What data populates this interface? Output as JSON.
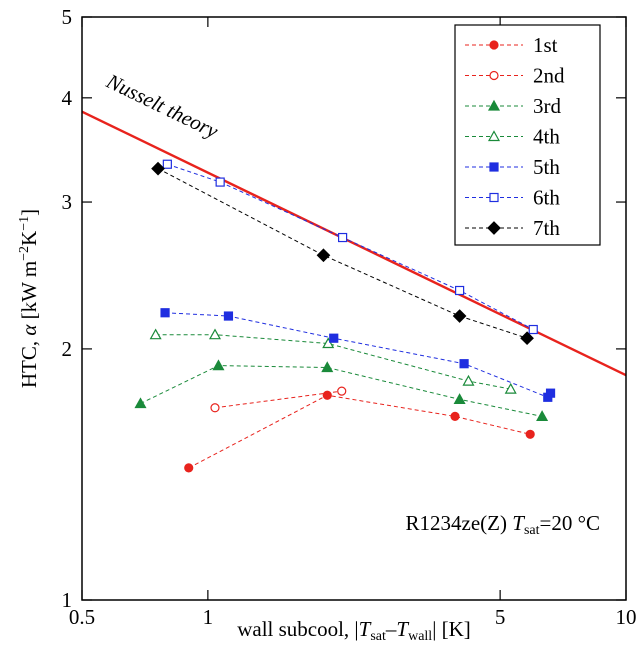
{
  "chart_data": {
    "type": "line",
    "xlabel": [
      "wall subcool,  |",
      "T",
      "sat",
      "–",
      "T",
      "wall",
      "| [K]"
    ],
    "ylabel": [
      "HTC,  ",
      "α",
      "   [kW m",
      "−2",
      "K",
      "−1",
      "]"
    ],
    "annotation": [
      "R1234ze(Z)   ",
      "T",
      "sat",
      "=20 °C"
    ],
    "xscale": "log",
    "yscale": "log",
    "xlim": [
      0.5,
      10
    ],
    "ylim": [
      1,
      5
    ],
    "xticks": [
      0.5,
      1,
      5,
      10
    ],
    "yticks": [
      1,
      2,
      3,
      4,
      5
    ],
    "legend": "upper right",
    "theory": {
      "name": "Nusselt theory",
      "color": "#e8231d",
      "x": [
        0.5,
        10
      ],
      "values": [
        3.85,
        1.86
      ]
    },
    "series": [
      {
        "name": "1st",
        "color": "#e8231d",
        "marker": "circle",
        "filled": true,
        "x": [
          0.9,
          1.93,
          3.9,
          5.9
        ],
        "values": [
          1.44,
          1.76,
          1.66,
          1.58
        ]
      },
      {
        "name": "2nd",
        "color": "#e8231d",
        "marker": "circle",
        "filled": false,
        "x": [
          1.04,
          2.09
        ],
        "values": [
          1.7,
          1.78
        ]
      },
      {
        "name": "3rd",
        "color": "#1a8a3a",
        "marker": "triangle",
        "filled": true,
        "x": [
          0.69,
          1.06,
          1.93,
          4.0,
          6.3
        ],
        "values": [
          1.72,
          1.91,
          1.9,
          1.74,
          1.66
        ]
      },
      {
        "name": "4th",
        "color": "#1a8a3a",
        "marker": "triangle",
        "filled": false,
        "x": [
          0.75,
          1.04,
          1.94,
          4.2,
          5.3
        ],
        "values": [
          2.08,
          2.08,
          2.03,
          1.83,
          1.79
        ]
      },
      {
        "name": "5th",
        "color": "#1f2ee0",
        "marker": "square",
        "filled": true,
        "x": [
          0.79,
          1.12,
          2.0,
          4.1,
          6.5,
          6.6
        ],
        "values": [
          2.21,
          2.19,
          2.06,
          1.92,
          1.75,
          1.77
        ]
      },
      {
        "name": "6th",
        "color": "#1f2ee0",
        "marker": "square",
        "filled": false,
        "x": [
          0.8,
          1.07,
          2.1,
          4.0,
          6.0
        ],
        "values": [
          3.33,
          3.17,
          2.72,
          2.35,
          2.11
        ]
      },
      {
        "name": "7th",
        "color": "#000000",
        "marker": "diamond",
        "filled": true,
        "x": [
          0.76,
          1.89,
          4.0,
          5.8
        ],
        "values": [
          3.29,
          2.59,
          2.19,
          2.06
        ]
      }
    ]
  }
}
